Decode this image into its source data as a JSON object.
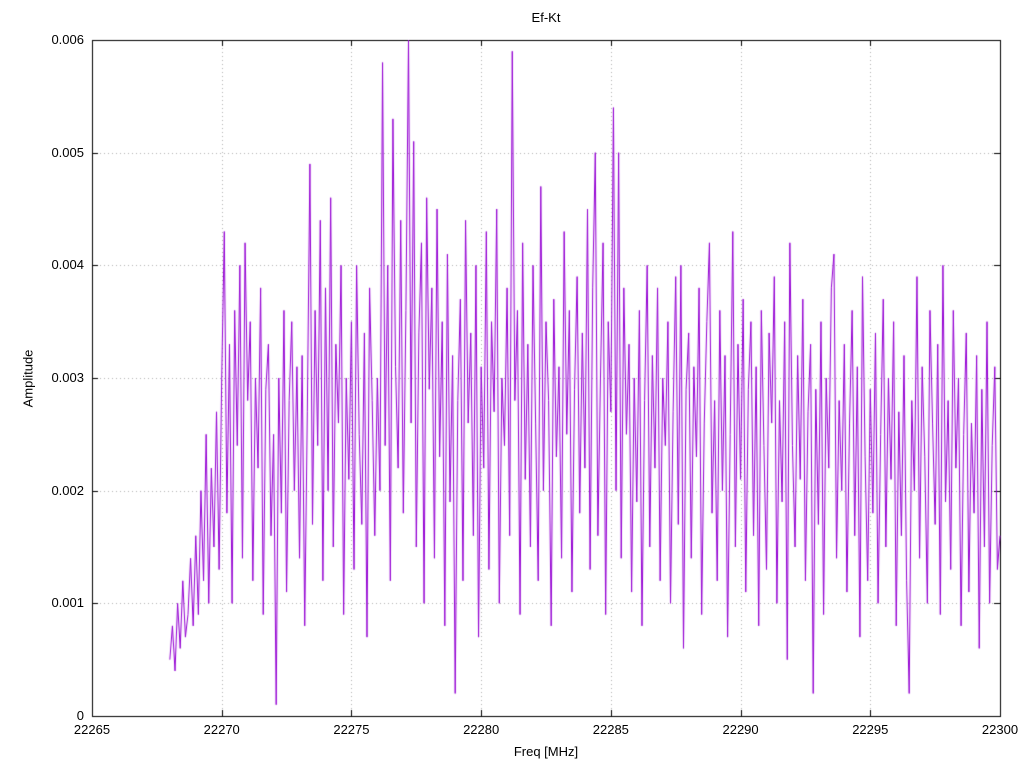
{
  "chart_data": {
    "type": "line",
    "title": "Ef-Kt",
    "xlabel": "Freq [MHz]",
    "ylabel": "Amplitude",
    "xlim": [
      22265,
      22300
    ],
    "ylim": [
      0,
      0.006
    ],
    "x_ticks": [
      22265,
      22270,
      22275,
      22280,
      22285,
      22290,
      22295,
      22300
    ],
    "x_tick_labels": [
      "22265",
      "22270",
      "22275",
      "22280",
      "22285",
      "22290",
      "22295",
      "22300"
    ],
    "y_ticks": [
      0,
      0.001,
      0.002,
      0.003,
      0.004,
      0.005,
      0.006
    ],
    "y_tick_labels": [
      "0",
      "0.001",
      "0.002",
      "0.003",
      "0.004",
      "0.005",
      "0.006"
    ],
    "grid": true,
    "legend": "none",
    "line_color": "#9400d3",
    "grid_color": "#b0b0b0",
    "axis_color": "#000000",
    "series": [
      {
        "name": "Ef-Kt",
        "x_start": 22268.0,
        "x_step": 0.1,
        "y_scale": 0.0001,
        "y_values": [
          5,
          8,
          4,
          10,
          6,
          12,
          7,
          9,
          14,
          8,
          16,
          9,
          20,
          12,
          25,
          10,
          22,
          15,
          27,
          13,
          30,
          43,
          18,
          33,
          10,
          36,
          24,
          40,
          14,
          42,
          28,
          35,
          12,
          30,
          22,
          38,
          9,
          29,
          33,
          16,
          25,
          1,
          30,
          18,
          36,
          11,
          28,
          35,
          20,
          31,
          14,
          32,
          8,
          27,
          49,
          17,
          36,
          24,
          44,
          12,
          38,
          20,
          46,
          15,
          33,
          26,
          40,
          9,
          30,
          21,
          35,
          13,
          40,
          25,
          17,
          34,
          7,
          38,
          28,
          16,
          30,
          20,
          58,
          24,
          40,
          12,
          53,
          31,
          22,
          44,
          18,
          36,
          60,
          26,
          51,
          15,
          34,
          42,
          10,
          46,
          29,
          38,
          14,
          45,
          23,
          35,
          8,
          41,
          19,
          32,
          2,
          28,
          37,
          12,
          44,
          26,
          34,
          16,
          40,
          7,
          31,
          22,
          43,
          13,
          35,
          27,
          45,
          10,
          30,
          24,
          38,
          16,
          59,
          28,
          36,
          9,
          42,
          21,
          33,
          15,
          40,
          26,
          12,
          47,
          20,
          35,
          28,
          8,
          37,
          23,
          31,
          14,
          43,
          25,
          36,
          11,
          29,
          39,
          18,
          34,
          22,
          45,
          13,
          38,
          50,
          16,
          30,
          42,
          9,
          35,
          27,
          54,
          20,
          50,
          14,
          38,
          25,
          33,
          11,
          30,
          19,
          36,
          8,
          28,
          40,
          15,
          32,
          22,
          38,
          12,
          30,
          24,
          35,
          10,
          27,
          39,
          17,
          40,
          6,
          29,
          34,
          14,
          31,
          23,
          38,
          9,
          26,
          35,
          42,
          18,
          28,
          12,
          36,
          20,
          32,
          7,
          25,
          43,
          15,
          33,
          21,
          37,
          11,
          29,
          35,
          16,
          31,
          8,
          36,
          24,
          13,
          34,
          26,
          39,
          10,
          28,
          19,
          35,
          5,
          42,
          24,
          15,
          32,
          21,
          37,
          12,
          27,
          33,
          2,
          29,
          17,
          35,
          9,
          30,
          22,
          38,
          41,
          14,
          28,
          20,
          33,
          11,
          26,
          36,
          16,
          31,
          7,
          39,
          23,
          12,
          29,
          18,
          34,
          10,
          25,
          37,
          15,
          30,
          21,
          35,
          8,
          27,
          16,
          32,
          12,
          2,
          28,
          20,
          39,
          14,
          31,
          23,
          10,
          36,
          26,
          17,
          33,
          9,
          40,
          19,
          28,
          13,
          36,
          22,
          30,
          8,
          25,
          34,
          11,
          26,
          18,
          32,
          6,
          29,
          15,
          35,
          10,
          24,
          31,
          13,
          16
        ]
      }
    ]
  }
}
